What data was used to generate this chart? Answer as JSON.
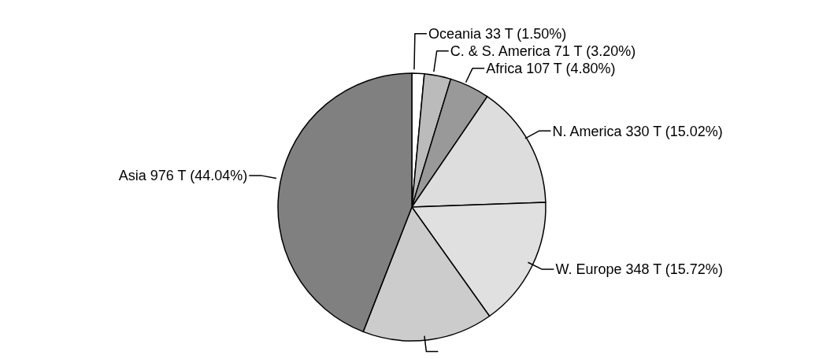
{
  "chart_data": {
    "type": "pie",
    "categories": [
      "Oceania",
      "C. & S. America",
      "Africa",
      "N. America",
      "W. Europe",
      null,
      "Asia"
    ],
    "values": [
      33,
      71,
      107,
      330,
      348,
      349,
      976
    ],
    "colors": [
      "#ffffff",
      "#bbbbbb",
      "#999999",
      "#dddddd",
      "#e0e0e0",
      "#cccccc",
      "#808080"
    ],
    "value_labels": [
      "33 T (1.50%)",
      "71 T (3.20%)",
      "107 T (4.80%)",
      "330 T (15.02%)",
      "348 T (15.72%)",
      null,
      "976 T (44.04%)"
    ]
  }
}
